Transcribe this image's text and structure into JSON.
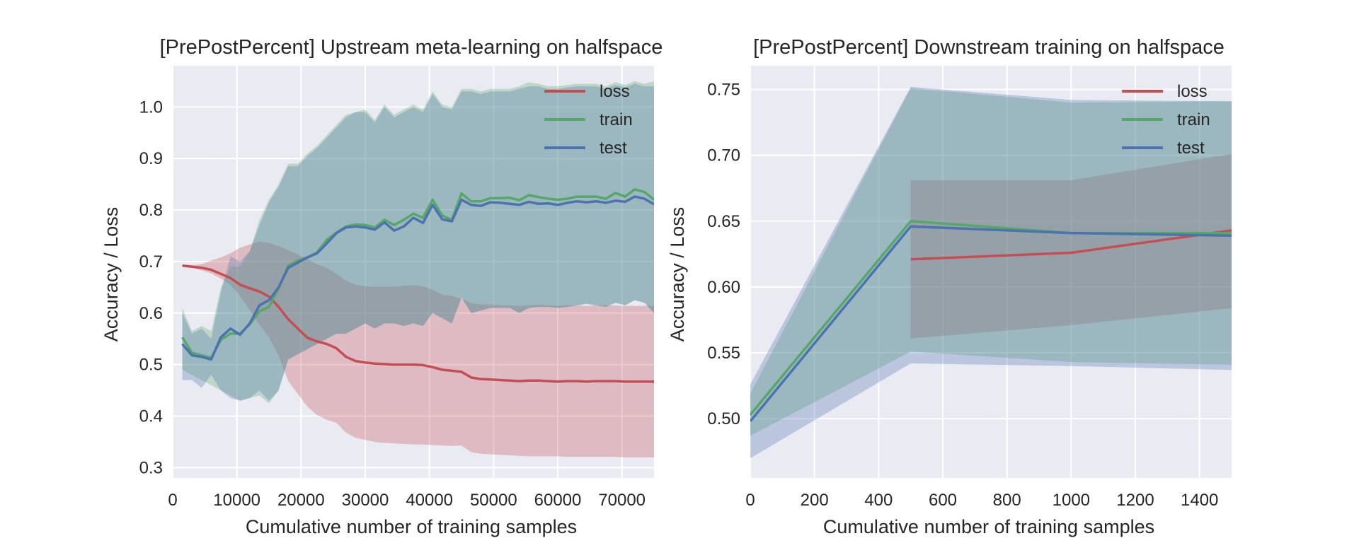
{
  "colors": {
    "background": "#eaeaf2",
    "grid": "#ffffff",
    "loss": "#c44e52",
    "train": "#55a868",
    "test": "#4c72b0",
    "text": "#262626"
  },
  "chart_data": [
    {
      "type": "line",
      "title": "[PrePostPercent] Upstream meta-learning on halfspace",
      "xlabel": "Cumulative number of training samples",
      "ylabel": "Accuracy / Loss",
      "xlim": [
        0,
        75000
      ],
      "ylim": [
        0.28,
        1.08
      ],
      "xticks": [
        0,
        10000,
        20000,
        30000,
        40000,
        50000,
        60000,
        70000
      ],
      "yticks": [
        0.3,
        0.4,
        0.5,
        0.6,
        0.7,
        0.8,
        0.9,
        1.0
      ],
      "ytick_labels": [
        "0.3",
        "0.4",
        "0.5",
        "0.6",
        "0.7",
        "0.8",
        "0.9",
        "1.0"
      ],
      "grid": true,
      "legend": "top-right",
      "series": [
        {
          "name": "loss",
          "color": "#c44e52",
          "x": [
            1500,
            3000,
            4500,
            6000,
            7500,
            9000,
            10500,
            12000,
            13500,
            15000,
            16500,
            18000,
            19500,
            21000,
            22500,
            24000,
            25500,
            27000,
            28500,
            30000,
            31500,
            33000,
            34500,
            36000,
            37500,
            39000,
            40500,
            42000,
            43500,
            45000,
            46500,
            48000,
            49500,
            51000,
            52500,
            54000,
            55500,
            57000,
            58500,
            60000,
            61500,
            63000,
            64500,
            66000,
            67500,
            69000,
            70500,
            72000,
            73500,
            75000
          ],
          "y": [
            0.692,
            0.69,
            0.688,
            0.684,
            0.676,
            0.668,
            0.655,
            0.648,
            0.642,
            0.632,
            0.612,
            0.588,
            0.57,
            0.552,
            0.545,
            0.54,
            0.532,
            0.515,
            0.507,
            0.504,
            0.502,
            0.501,
            0.5,
            0.5,
            0.5,
            0.499,
            0.495,
            0.49,
            0.488,
            0.486,
            0.475,
            0.472,
            0.471,
            0.47,
            0.469,
            0.468,
            0.469,
            0.469,
            0.468,
            0.467,
            0.468,
            0.468,
            0.467,
            0.468,
            0.468,
            0.468,
            0.467,
            0.467,
            0.467,
            0.467
          ],
          "lower": [
            0.69,
            0.688,
            0.683,
            0.677,
            0.667,
            0.655,
            0.633,
            0.606,
            0.578,
            0.553,
            0.518,
            0.468,
            0.443,
            0.418,
            0.402,
            0.393,
            0.387,
            0.368,
            0.358,
            0.354,
            0.35,
            0.348,
            0.347,
            0.346,
            0.345,
            0.345,
            0.344,
            0.343,
            0.342,
            0.343,
            0.33,
            0.327,
            0.326,
            0.325,
            0.324,
            0.323,
            0.322,
            0.322,
            0.322,
            0.322,
            0.321,
            0.321,
            0.321,
            0.321,
            0.321,
            0.321,
            0.32,
            0.32,
            0.32,
            0.32
          ],
          "upper": [
            0.694,
            0.693,
            0.695,
            0.702,
            0.708,
            0.716,
            0.727,
            0.733,
            0.739,
            0.736,
            0.73,
            0.722,
            0.714,
            0.705,
            0.695,
            0.688,
            0.676,
            0.663,
            0.655,
            0.652,
            0.651,
            0.651,
            0.651,
            0.653,
            0.654,
            0.652,
            0.645,
            0.636,
            0.633,
            0.628,
            0.619,
            0.617,
            0.616,
            0.615,
            0.615,
            0.614,
            0.615,
            0.616,
            0.615,
            0.614,
            0.615,
            0.615,
            0.614,
            0.615,
            0.615,
            0.615,
            0.614,
            0.614,
            0.614,
            0.614
          ]
        },
        {
          "name": "train",
          "color": "#55a868",
          "x": [
            1500,
            3000,
            4500,
            6000,
            7500,
            9000,
            10500,
            12000,
            13500,
            15000,
            16500,
            18000,
            19500,
            21000,
            22500,
            24000,
            25500,
            27000,
            28500,
            30000,
            31500,
            33000,
            34500,
            36000,
            37500,
            39000,
            40500,
            42000,
            43500,
            45000,
            46500,
            48000,
            49500,
            51000,
            52500,
            54000,
            55500,
            57000,
            58500,
            60000,
            61500,
            63000,
            64500,
            66000,
            67500,
            69000,
            70500,
            72000,
            73500,
            75000
          ],
          "y": [
            0.553,
            0.523,
            0.518,
            0.513,
            0.548,
            0.56,
            0.56,
            0.578,
            0.603,
            0.612,
            0.648,
            0.692,
            0.702,
            0.708,
            0.718,
            0.742,
            0.756,
            0.768,
            0.772,
            0.771,
            0.766,
            0.781,
            0.771,
            0.781,
            0.793,
            0.785,
            0.82,
            0.789,
            0.781,
            0.832,
            0.817,
            0.817,
            0.823,
            0.823,
            0.824,
            0.819,
            0.829,
            0.825,
            0.822,
            0.82,
            0.822,
            0.826,
            0.826,
            0.826,
            0.822,
            0.833,
            0.826,
            0.84,
            0.835,
            0.82
          ],
          "lower": [
            0.49,
            0.48,
            0.47,
            0.46,
            0.45,
            0.44,
            0.43,
            0.435,
            0.44,
            0.425,
            0.45,
            0.51,
            0.52,
            0.53,
            0.54,
            0.55,
            0.56,
            0.56,
            0.57,
            0.58,
            0.57,
            0.58,
            0.58,
            0.575,
            0.58,
            0.575,
            0.6,
            0.59,
            0.58,
            0.63,
            0.6,
            0.605,
            0.61,
            0.61,
            0.61,
            0.6,
            0.61,
            0.612,
            0.612,
            0.61,
            0.612,
            0.615,
            0.618,
            0.615,
            0.612,
            0.62,
            0.615,
            0.625,
            0.62,
            0.6
          ],
          "upper": [
            0.61,
            0.565,
            0.575,
            0.565,
            0.65,
            0.69,
            0.69,
            0.72,
            0.78,
            0.82,
            0.85,
            0.89,
            0.89,
            0.91,
            0.925,
            0.945,
            0.965,
            0.985,
            0.99,
            0.995,
            0.975,
            1.005,
            0.985,
            0.995,
            1.005,
            0.995,
            1.03,
            1.005,
            1.0,
            1.035,
            1.035,
            1.03,
            1.035,
            1.035,
            1.035,
            1.04,
            1.048,
            1.045,
            1.04,
            1.04,
            1.043,
            1.045,
            1.045,
            1.045,
            1.04,
            1.048,
            1.043,
            1.05,
            1.045,
            1.05
          ]
        },
        {
          "name": "test",
          "color": "#4c72b0",
          "x": [
            1500,
            3000,
            4500,
            6000,
            7500,
            9000,
            10500,
            12000,
            13500,
            15000,
            16500,
            18000,
            19500,
            21000,
            22500,
            24000,
            25500,
            27000,
            28500,
            30000,
            31500,
            33000,
            34500,
            36000,
            37500,
            39000,
            40500,
            42000,
            43500,
            45000,
            46500,
            48000,
            49500,
            51000,
            52500,
            54000,
            55500,
            57000,
            58500,
            60000,
            61500,
            63000,
            64500,
            66000,
            67500,
            69000,
            70500,
            72000,
            73500,
            75000
          ],
          "y": [
            0.54,
            0.518,
            0.515,
            0.51,
            0.553,
            0.57,
            0.558,
            0.58,
            0.615,
            0.625,
            0.65,
            0.688,
            0.698,
            0.708,
            0.716,
            0.735,
            0.755,
            0.766,
            0.768,
            0.766,
            0.762,
            0.776,
            0.76,
            0.768,
            0.785,
            0.775,
            0.81,
            0.782,
            0.778,
            0.82,
            0.81,
            0.808,
            0.815,
            0.814,
            0.812,
            0.81,
            0.816,
            0.812,
            0.813,
            0.81,
            0.814,
            0.817,
            0.815,
            0.817,
            0.814,
            0.818,
            0.816,
            0.826,
            0.822,
            0.811
          ],
          "lower": [
            0.47,
            0.47,
            0.455,
            0.48,
            0.45,
            0.435,
            0.43,
            0.435,
            0.45,
            0.43,
            0.45,
            0.51,
            0.52,
            0.53,
            0.54,
            0.55,
            0.56,
            0.56,
            0.57,
            0.58,
            0.57,
            0.58,
            0.58,
            0.575,
            0.58,
            0.575,
            0.6,
            0.59,
            0.58,
            0.63,
            0.6,
            0.605,
            0.61,
            0.61,
            0.61,
            0.6,
            0.61,
            0.612,
            0.612,
            0.61,
            0.612,
            0.615,
            0.618,
            0.615,
            0.612,
            0.62,
            0.615,
            0.625,
            0.62,
            0.6
          ],
          "upper": [
            0.6,
            0.56,
            0.57,
            0.55,
            0.64,
            0.71,
            0.7,
            0.72,
            0.77,
            0.815,
            0.845,
            0.885,
            0.885,
            0.905,
            0.92,
            0.94,
            0.96,
            0.98,
            0.99,
            0.99,
            0.97,
            1.0,
            0.98,
            0.99,
            1.0,
            0.99,
            1.025,
            1.0,
            0.995,
            1.03,
            1.03,
            1.025,
            1.03,
            1.03,
            1.03,
            1.035,
            1.04,
            1.04,
            1.035,
            1.035,
            1.038,
            1.04,
            1.04,
            1.04,
            1.035,
            1.043,
            1.038,
            1.045,
            1.04,
            1.04
          ]
        }
      ]
    },
    {
      "type": "line",
      "title": "[PrePostPercent] Downstream training on halfspace",
      "xlabel": "Cumulative number of training samples",
      "ylabel": "Accuracy / Loss",
      "xlim": [
        0,
        1500
      ],
      "ylim": [
        0.455,
        0.768
      ],
      "xticks": [
        0,
        200,
        400,
        600,
        800,
        1000,
        1200,
        1400
      ],
      "yticks": [
        0.5,
        0.55,
        0.6,
        0.65,
        0.7,
        0.75
      ],
      "ytick_labels": [
        "0.50",
        "0.55",
        "0.60",
        "0.65",
        "0.70",
        "0.75"
      ],
      "grid": true,
      "legend": "top-right",
      "series": [
        {
          "name": "loss",
          "color": "#c44e52",
          "x": [
            500,
            1000,
            1500
          ],
          "y": [
            0.621,
            0.626,
            0.643
          ],
          "lower": [
            0.561,
            0.571,
            0.584
          ],
          "upper": [
            0.681,
            0.681,
            0.701
          ]
        },
        {
          "name": "train",
          "color": "#55a868",
          "x": [
            0,
            500,
            1000,
            1500
          ],
          "y": [
            0.503,
            0.65,
            0.641,
            0.641
          ],
          "lower": [
            0.487,
            0.551,
            0.543,
            0.541
          ],
          "upper": [
            0.519,
            0.751,
            0.74,
            0.741
          ]
        },
        {
          "name": "test",
          "color": "#4c72b0",
          "x": [
            0,
            500,
            1000,
            1500
          ],
          "y": [
            0.498,
            0.646,
            0.641,
            0.639
          ],
          "lower": [
            0.47,
            0.542,
            0.54,
            0.537
          ],
          "upper": [
            0.526,
            0.752,
            0.742,
            0.741
          ]
        }
      ]
    }
  ]
}
